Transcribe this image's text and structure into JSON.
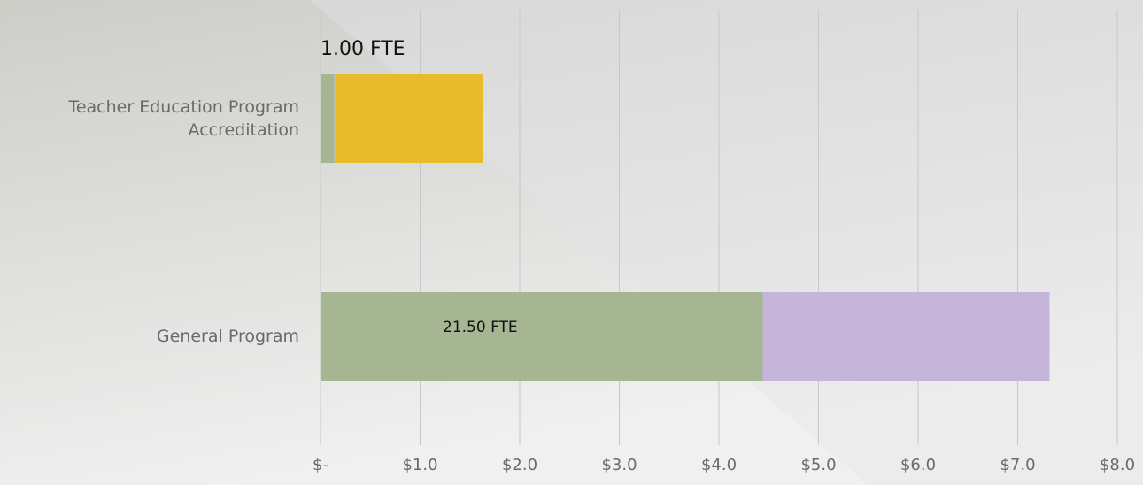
{
  "chart_data": {
    "type": "stacked-barh",
    "categories": [
      "Teacher Education Program Accreditation",
      "General Program"
    ],
    "series": [
      {
        "color": "#a6b592",
        "values": [
          0.14,
          4.44
        ]
      },
      {
        "color": "#c5b6d9",
        "values": [
          0.02,
          2.88
        ]
      },
      {
        "color": "#e6bc2c",
        "values": [
          1.47,
          0
        ]
      }
    ],
    "annotations": [
      "1.00 FTE",
      "21.50 FTE"
    ],
    "xlim": [
      0,
      8
    ],
    "xticks": [
      {
        "value": 0,
        "label": "$-"
      },
      {
        "value": 1,
        "label": "$1.0"
      },
      {
        "value": 2,
        "label": "$2.0"
      },
      {
        "value": 3,
        "label": "$3.0"
      },
      {
        "value": 4,
        "label": "$4.0"
      },
      {
        "value": 5,
        "label": "$5.0"
      },
      {
        "value": 6,
        "label": "$6.0"
      },
      {
        "value": 7,
        "label": "$7.0"
      },
      {
        "value": 8,
        "label": "$8.0"
      }
    ],
    "grid": true
  }
}
